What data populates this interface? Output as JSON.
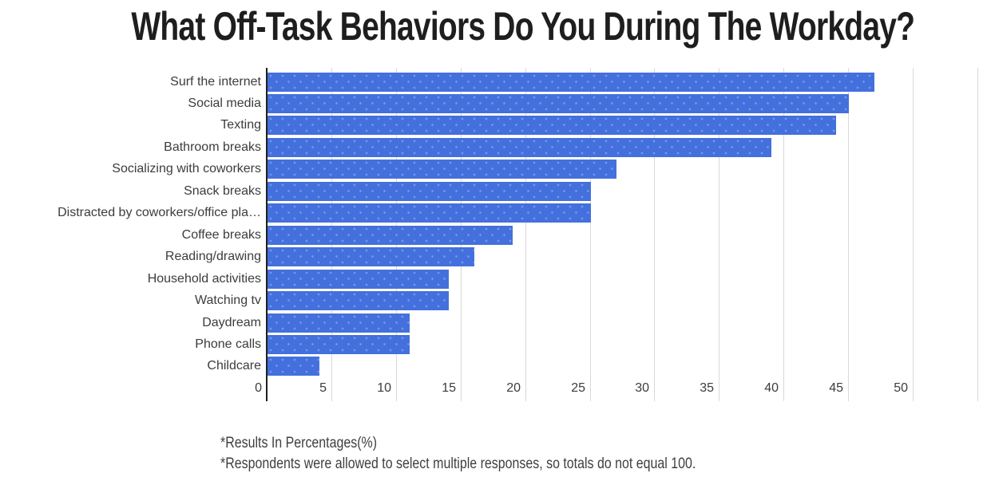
{
  "title": "What Off-Task Behaviors Do You During The Workday?",
  "footnotes": {
    "line1": "*Results In Percentages(%)",
    "line2": "*Respondents were allowed to select multiple responses, so totals do not equal 100."
  },
  "chart_data": {
    "type": "bar",
    "orientation": "horizontal",
    "title": "What Off-Task Behaviors Do You During The Workday?",
    "categories": [
      "Surf the internet",
      "Social media",
      "Texting",
      "Bathroom breaks",
      "Socializing with coworkers",
      "Snack breaks",
      "Distracted by coworkers/office pla…",
      "Coffee breaks",
      "Reading/drawing",
      "Household activities",
      "Watching tv",
      "Daydream",
      "Phone calls",
      "Childcare"
    ],
    "values": [
      47,
      45,
      44,
      39,
      27,
      25,
      25,
      19,
      16,
      14,
      14,
      11,
      11,
      4
    ],
    "unit": "percent",
    "xlabel": "",
    "ylabel": "",
    "xlim": [
      0,
      55
    ],
    "x_ticks": [
      0,
      5,
      10,
      15,
      20,
      25,
      30,
      35,
      40,
      45,
      50
    ],
    "grid": true,
    "legend": false,
    "colors": {
      "bar": "#4470dd",
      "axis": "#1f1f1f",
      "gridline": "#d9d9d9",
      "tick_label": "#3c3c3c",
      "category_label": "#3c3c3c",
      "title": "#1e1e1e",
      "footnote": "#3f3f3f",
      "background": "#ffffff"
    }
  }
}
